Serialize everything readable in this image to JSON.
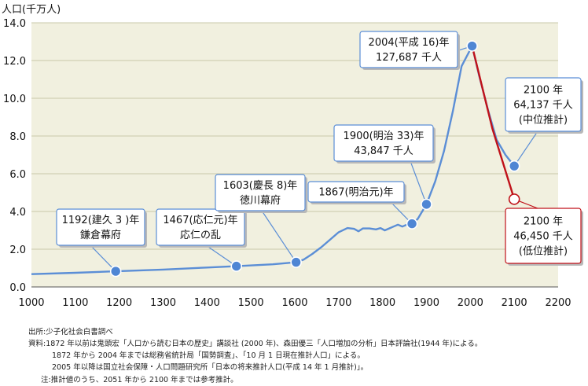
{
  "chart_data": {
    "type": "line",
    "ylabel": "人口(千万人)",
    "xlim": [
      1000,
      2200
    ],
    "ylim": [
      0,
      14
    ],
    "x_ticks": [
      "1000",
      "1100",
      "1200",
      "1300",
      "1400",
      "1500",
      "1600",
      "1700",
      "1800",
      "1900",
      "2000",
      "2100",
      "2200"
    ],
    "y_ticks": [
      "0.0",
      "2.0",
      "4.0",
      "6.0",
      "8.0",
      "10.0",
      "12.0",
      "14.0"
    ],
    "grid": "horizontal",
    "colors": {
      "plot_bg": "#f1f0df",
      "grid": "#c9c8a8",
      "line_main": "#5b8ed6",
      "line_low": "#c0121a",
      "marker": "#4f86d4",
      "marker_edge": "#ffffff",
      "callout_border": "#5b8ed6",
      "callout_low_border": "#c0121a"
    },
    "series": [
      {
        "points": [
          [
            1000,
            0.68
          ],
          [
            1100,
            0.75
          ],
          [
            1192,
            0.83
          ],
          [
            1300,
            0.92
          ],
          [
            1400,
            1.03
          ],
          [
            1467,
            1.1
          ],
          [
            1550,
            1.2
          ],
          [
            1603,
            1.31
          ],
          [
            1620,
            1.45
          ],
          [
            1640,
            1.75
          ],
          [
            1660,
            2.1
          ],
          [
            1680,
            2.5
          ],
          [
            1700,
            2.9
          ],
          [
            1720,
            3.12
          ],
          [
            1735,
            3.08
          ],
          [
            1745,
            2.95
          ],
          [
            1755,
            3.1
          ],
          [
            1770,
            3.1
          ],
          [
            1785,
            3.05
          ],
          [
            1795,
            3.12
          ],
          [
            1805,
            3.0
          ],
          [
            1815,
            3.1
          ],
          [
            1825,
            3.2
          ],
          [
            1835,
            3.3
          ],
          [
            1845,
            3.2
          ],
          [
            1855,
            3.3
          ],
          [
            1867,
            3.35
          ],
          [
            1880,
            3.6
          ],
          [
            1900,
            4.38
          ],
          [
            1920,
            5.6
          ],
          [
            1940,
            7.2
          ],
          [
            1960,
            9.3
          ],
          [
            1980,
            11.7
          ],
          [
            2004,
            12.77
          ],
          [
            2020,
            11.2
          ],
          [
            2040,
            9.4
          ],
          [
            2060,
            7.8
          ],
          [
            2080,
            7.0
          ],
          [
            2100,
            6.41
          ]
        ]
      },
      {
        "points": [
          [
            2004,
            12.77
          ],
          [
            2050,
            8.4
          ],
          [
            2100,
            4.65
          ]
        ]
      }
    ],
    "markers": [
      {
        "year": 1192,
        "value": 0.83,
        "style": "filled"
      },
      {
        "year": 1467,
        "value": 1.1,
        "style": "filled"
      },
      {
        "year": 1603,
        "value": 1.31,
        "style": "filled"
      },
      {
        "year": 1867,
        "value": 3.35,
        "style": "filled"
      },
      {
        "year": 1900,
        "value": 4.38,
        "style": "filled"
      },
      {
        "year": 2004,
        "value": 12.77,
        "style": "filled"
      },
      {
        "year": 2100,
        "value": 6.41,
        "style": "filled"
      },
      {
        "year": 2100,
        "value": 4.65,
        "style": "hollow"
      }
    ],
    "annotations": [
      {
        "lines": [
          "1192(建久 3 )年",
          "鎌倉幕府"
        ],
        "year": 1192,
        "value": 0.83,
        "type": "normal"
      },
      {
        "lines": [
          "1467(応仁元)年",
          "応仁の乱"
        ],
        "year": 1467,
        "value": 1.1,
        "type": "normal"
      },
      {
        "lines": [
          "1603(慶長 8)年",
          "徳川幕府"
        ],
        "year": 1603,
        "value": 1.31,
        "type": "normal"
      },
      {
        "lines": [
          "1867(明治元)年"
        ],
        "year": 1867,
        "value": 3.35,
        "type": "normal"
      },
      {
        "lines": [
          "1900(明治 33)年",
          "43,847 千人"
        ],
        "year": 1900,
        "value": 4.38,
        "type": "normal"
      },
      {
        "lines": [
          "2004(平成 16)年",
          "127,687 千人"
        ],
        "year": 2004,
        "value": 12.77,
        "type": "normal"
      },
      {
        "lines": [
          "2100 年",
          "64,137 千人",
          "(中位推計)"
        ],
        "year": 2100,
        "value": 6.41,
        "type": "normal"
      },
      {
        "lines": [
          "2100 年",
          "46,450 千人",
          "(低位推計)"
        ],
        "year": 2100,
        "value": 4.65,
        "type": "low"
      }
    ]
  },
  "notes": [
    "出所:少子化社会白書調べ",
    "資料:1872 年以前は鬼頭宏「人口から読む日本の歴史」講談社 (2000 年)、森田優三「人口増加の分析」日本評論社(1944 年)による。",
    "1872 年から 2004 年までは総務省統計局「国勢調査」、「10 月 1 日現在推計人口」による。",
    "2005 年以降は国立社会保障・人口問題研究所「日本の将来推計人口(平成 14 年 1 月推計)」。",
    "注:推計値のうち、2051 年から 2100 年までは参考推計。"
  ]
}
